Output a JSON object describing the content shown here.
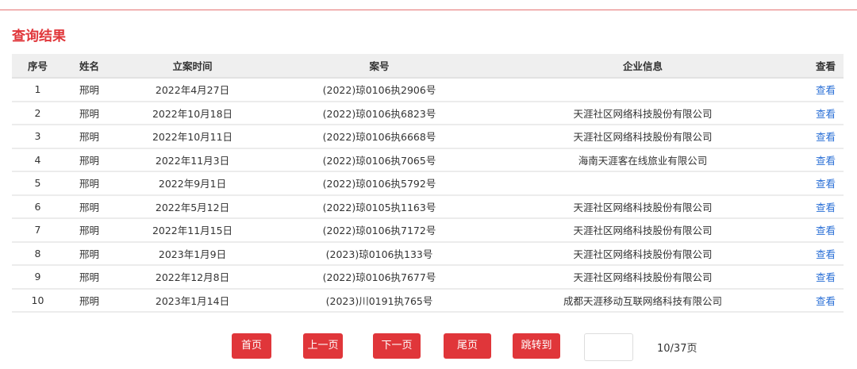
{
  "title": "查询结果",
  "colors": {
    "accent": "#e0363a",
    "link": "#2a6fd6"
  },
  "table": {
    "headers": [
      "序号",
      "姓名",
      "立案时间",
      "案号",
      "企业信息",
      "查看"
    ],
    "rows": [
      {
        "no": "1",
        "name": "邢明",
        "date": "2022年4月27日",
        "case": "(2022)琼0106执2906号",
        "company": "",
        "view": "查看"
      },
      {
        "no": "2",
        "name": "邢明",
        "date": "2022年10月18日",
        "case": "(2022)琼0106执6823号",
        "company": "天涯社区网络科技股份有限公司",
        "view": "查看"
      },
      {
        "no": "3",
        "name": "邢明",
        "date": "2022年10月11日",
        "case": "(2022)琼0106执6668号",
        "company": "天涯社区网络科技股份有限公司",
        "view": "查看"
      },
      {
        "no": "4",
        "name": "邢明",
        "date": "2022年11月3日",
        "case": "(2022)琼0106执7065号",
        "company": "海南天涯客在线旅业有限公司",
        "view": "查看"
      },
      {
        "no": "5",
        "name": "邢明",
        "date": "2022年9月1日",
        "case": "(2022)琼0106执5792号",
        "company": "",
        "view": "查看"
      },
      {
        "no": "6",
        "name": "邢明",
        "date": "2022年5月12日",
        "case": "(2022)琼0105执1163号",
        "company": "天涯社区网络科技股份有限公司",
        "view": "查看"
      },
      {
        "no": "7",
        "name": "邢明",
        "date": "2022年11月15日",
        "case": "(2022)琼0106执7172号",
        "company": "天涯社区网络科技股份有限公司",
        "view": "查看"
      },
      {
        "no": "8",
        "name": "邢明",
        "date": "2023年1月9日",
        "case": "(2023)琼0106执133号",
        "company": "天涯社区网络科技股份有限公司",
        "view": "查看"
      },
      {
        "no": "9",
        "name": "邢明",
        "date": "2022年12月8日",
        "case": "(2022)琼0106执7677号",
        "company": "天涯社区网络科技股份有限公司",
        "view": "查看"
      },
      {
        "no": "10",
        "name": "邢明",
        "date": "2023年1月14日",
        "case": "(2023)川0191执765号",
        "company": "成都天涯移动互联网络科技有限公司",
        "view": "查看"
      }
    ]
  },
  "pagination": {
    "first": "首页",
    "prev": "上一页",
    "next": "下一页",
    "last": "尾页",
    "jump": "跳转到",
    "jump_value": "",
    "page_info": "10/37页"
  }
}
